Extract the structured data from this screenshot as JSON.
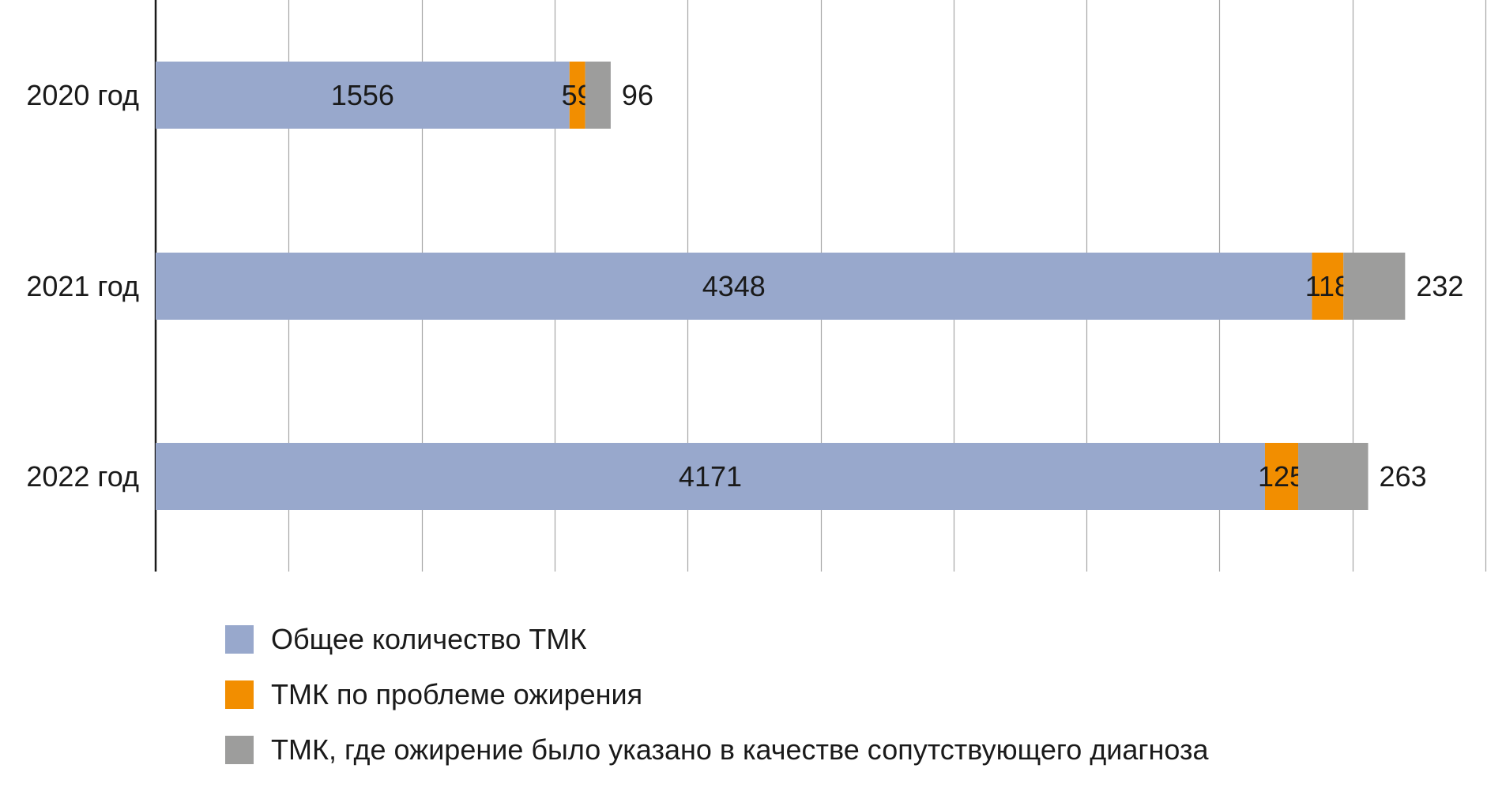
{
  "chart_data": {
    "type": "bar",
    "orientation": "horizontal",
    "stacked": true,
    "categories": [
      "2020 год",
      "2021 год",
      "2022 год"
    ],
    "series": [
      {
        "name": "Общее количество ТМК",
        "values": [
          1556,
          4348,
          4171
        ],
        "color": "#98a8cc"
      },
      {
        "name": "ТМК по проблеме ожирения",
        "values": [
          59,
          118,
          125
        ],
        "color": "#f28e00"
      },
      {
        "name": "ТМК, где ожирение было указано в качестве сопутствующего диагноза",
        "values": [
          96,
          232,
          263
        ],
        "color": "#9d9d9c"
      }
    ],
    "title": "",
    "xlabel": "",
    "ylabel": "",
    "xlim": [
      0,
      5000
    ],
    "grid": true,
    "gridlines_every": 500,
    "legend_position": "bottom",
    "value_labels": "shown on each segment, last segment labelled after the bar end"
  }
}
